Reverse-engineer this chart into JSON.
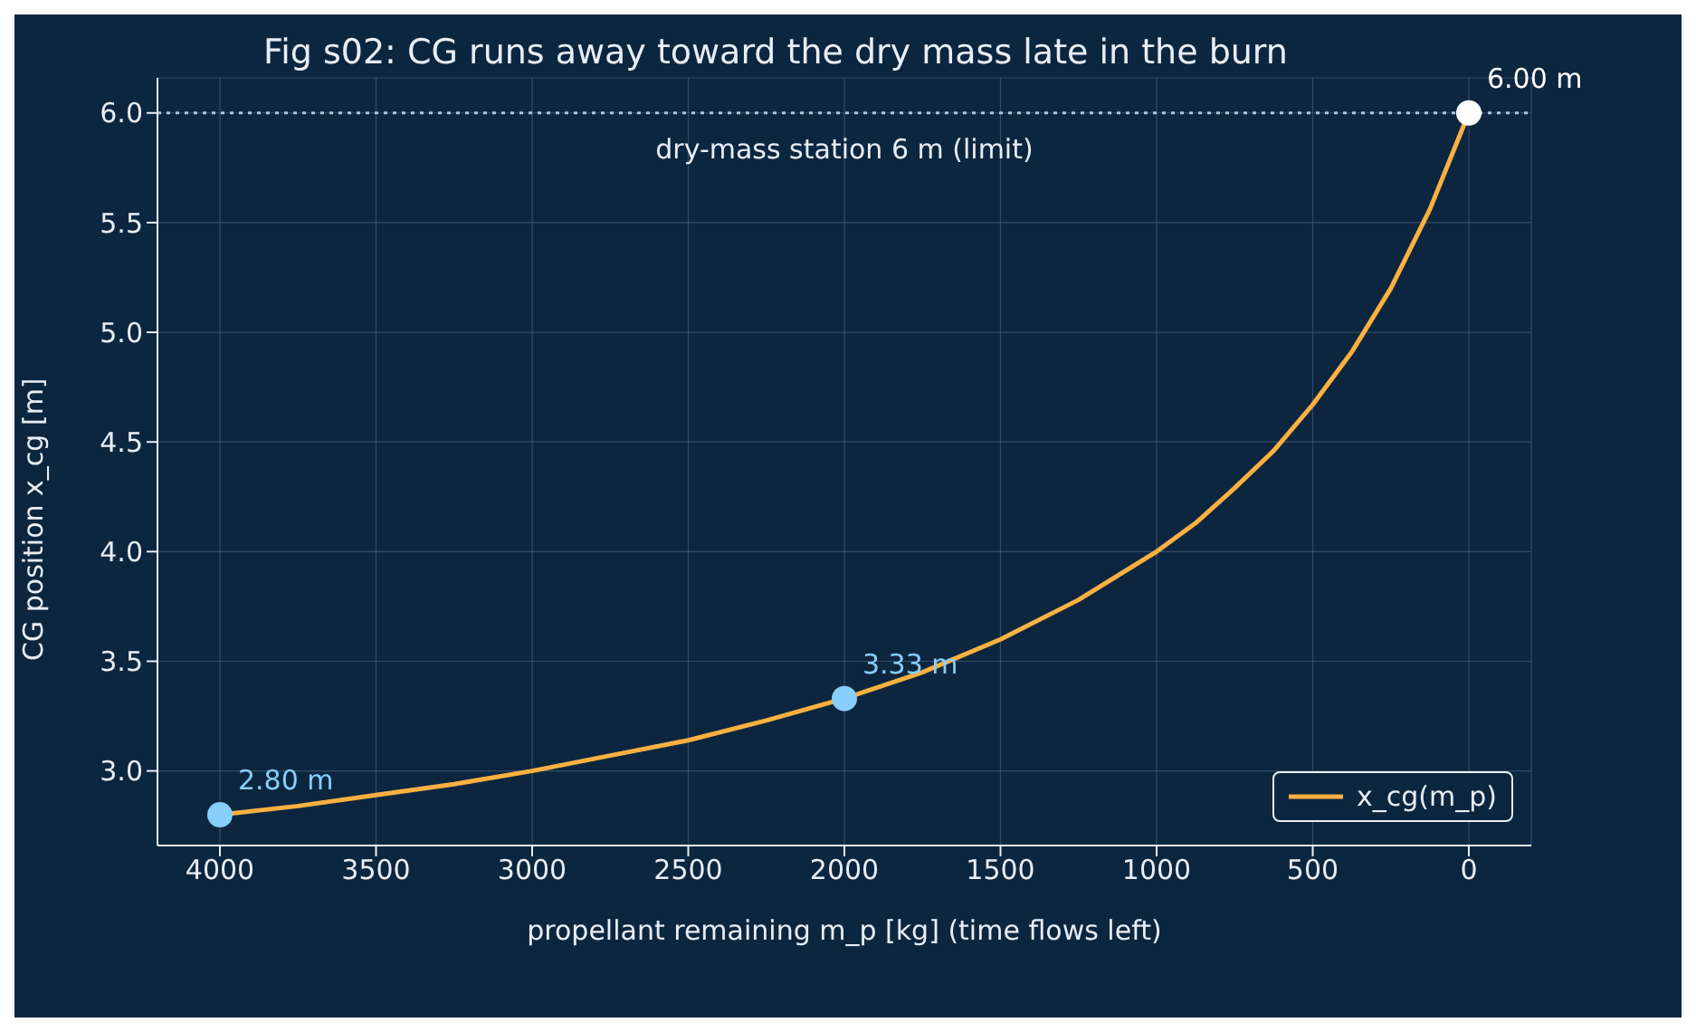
{
  "chart_data": {
    "type": "line",
    "title": "Fig s02: CG runs away toward the dry mass late in the burn",
    "xlabel": "propellant remaining  m_p  [kg]   (time flows left)",
    "ylabel": "CG position  x_cg  [m]",
    "xlim": [
      4200,
      -200
    ],
    "ylim": [
      2.66,
      6.16
    ],
    "xticks": [
      4000,
      3500,
      3000,
      2500,
      2000,
      1500,
      1000,
      500,
      0
    ],
    "yticks": [
      {
        "value": 3,
        "label": "3.0"
      },
      {
        "value": 3.5,
        "label": "3.5"
      },
      {
        "value": 4,
        "label": "4.0"
      },
      {
        "value": 4.5,
        "label": "4.5"
      },
      {
        "value": 5,
        "label": "5.0"
      },
      {
        "value": 5.5,
        "label": "5.5"
      },
      {
        "value": 6,
        "label": "6.0"
      }
    ],
    "grid": true,
    "legend": "bottom right",
    "marker": "none",
    "line_style": "solid",
    "series": [
      {
        "name": "x_cg(m_p)",
        "color": "#fbb040",
        "x": [
          4000,
          3750,
          3500,
          3250,
          3000,
          2750,
          2500,
          2250,
          2000,
          1750,
          1500,
          1250,
          1000,
          875,
          750,
          625,
          500,
          375,
          250,
          125,
          0
        ],
        "values": [
          2.8,
          2.84,
          2.89,
          2.94,
          3.0,
          3.07,
          3.14,
          3.23,
          3.33,
          3.45,
          3.6,
          3.78,
          4.0,
          4.13,
          4.29,
          4.46,
          4.67,
          4.91,
          5.2,
          5.56,
          6.0
        ]
      },
      {
        "type": "scatter",
        "marker": "circle",
        "x": [
          4000,
          2000,
          0
        ],
        "values": [
          2.8,
          3.33,
          6.0
        ],
        "colors": [
          "#87cefa",
          "#87cefa",
          "#ffffff"
        ],
        "value_labels": [
          "2.80 m",
          "3.33 m",
          "6.00 m"
        ]
      }
    ],
    "ref_lines": [
      {
        "axis": "y",
        "value": 6,
        "label": "dry-mass station 6 m (limit)",
        "color": "#b0c4d8",
        "line_style": "dotted"
      }
    ]
  }
}
